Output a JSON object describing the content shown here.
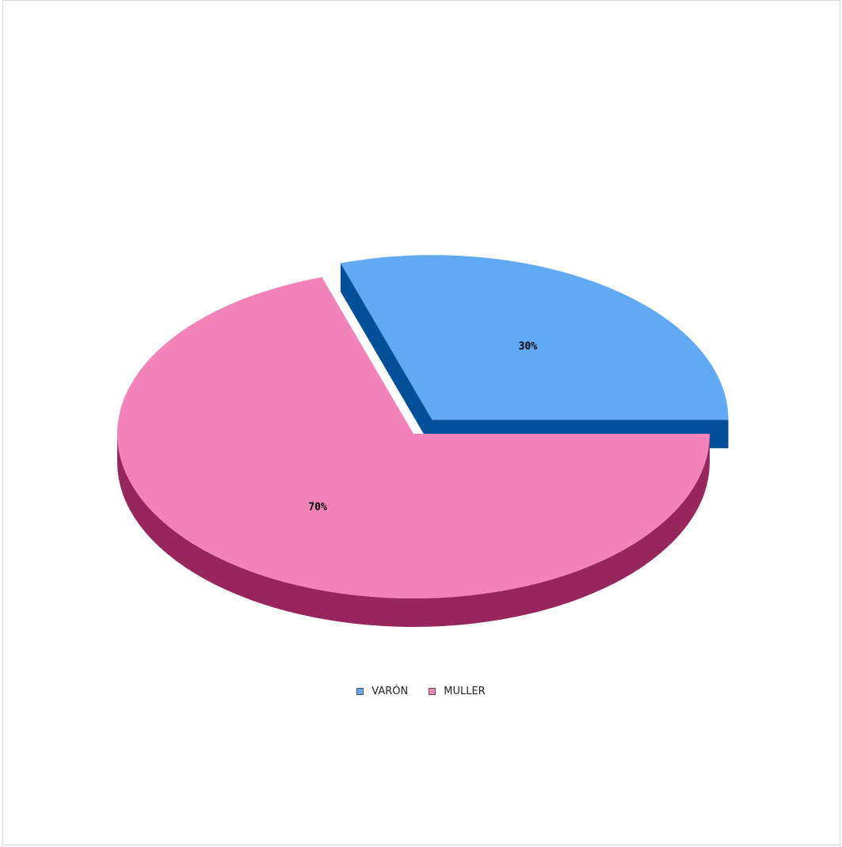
{
  "chart_data": {
    "type": "pie",
    "style": "3d",
    "categories": [
      "VARÓN",
      "MULLER"
    ],
    "values": [
      30,
      70
    ],
    "labels": [
      "30%",
      "70%"
    ],
    "exploded": [
      "VARÓN"
    ],
    "legend_position": "bottom",
    "colors": {
      "VARÓN": {
        "top": "#62a9f3",
        "side": "#044f9a"
      },
      "MULLER": {
        "top": "#f183b8",
        "side": "#96265b"
      }
    }
  },
  "legend": {
    "items": [
      {
        "label": "VARÓN",
        "color": "#62a9f3"
      },
      {
        "label": "MULLER",
        "color": "#f183b8"
      }
    ]
  }
}
